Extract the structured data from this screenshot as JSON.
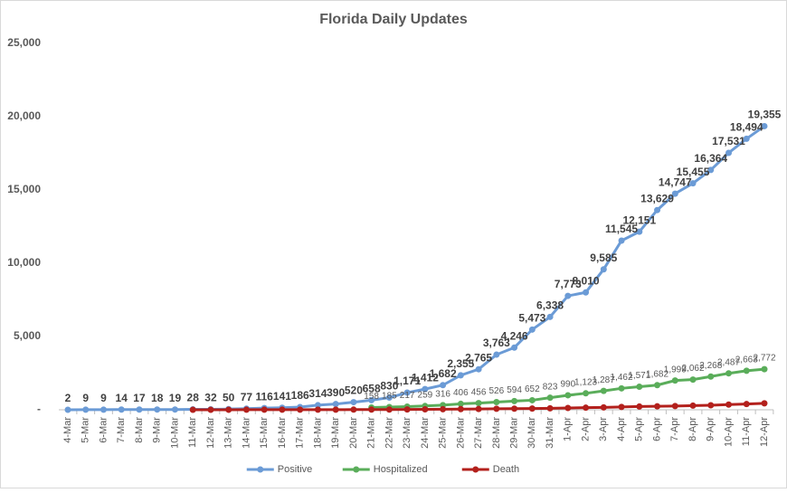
{
  "chart_data": {
    "type": "line",
    "title": "Florida Daily Updates",
    "categories": [
      "4-Mar",
      "5-Mar",
      "6-Mar",
      "7-Mar",
      "8-Mar",
      "9-Mar",
      "10-Mar",
      "11-Mar",
      "12-Mar",
      "13-Mar",
      "14-Mar",
      "15-Mar",
      "16-Mar",
      "17-Mar",
      "18-Mar",
      "19-Mar",
      "20-Mar",
      "21-Mar",
      "22-Mar",
      "23-Mar",
      "24-Mar",
      "25-Mar",
      "26-Mar",
      "27-Mar",
      "28-Mar",
      "29-Mar",
      "30-Mar",
      "31-Mar",
      "1-Apr",
      "2-Apr",
      "3-Apr",
      "4-Apr",
      "5-Apr",
      "6-Apr",
      "7-Apr",
      "8-Apr",
      "9-Apr",
      "10-Apr",
      "11-Apr",
      "12-Apr"
    ],
    "series": [
      {
        "name": "Positive",
        "color": "#6b9bd6",
        "values": [
          2,
          9,
          9,
          14,
          17,
          18,
          19,
          28,
          32,
          50,
          77,
          116,
          141,
          186,
          314,
          390,
          520,
          658,
          830,
          1171,
          1412,
          1682,
          2355,
          2765,
          3763,
          4246,
          5473,
          6338,
          7773,
          8010,
          9585,
          11545,
          12151,
          13629,
          14747,
          15455,
          16364,
          17531,
          18494,
          19355
        ],
        "value_labels": [
          "2",
          "9",
          "9",
          "14",
          "17",
          "18",
          "19",
          "28",
          "32",
          "50",
          "77",
          "116",
          "141",
          "186",
          "314",
          "390",
          "520",
          "658",
          "830",
          "1,171",
          "1,412",
          "1,682",
          "2,355",
          "2,765",
          "3,763",
          "4,246",
          "5,473",
          "6,338",
          "7,773",
          "8,010",
          "9,585",
          "11,545",
          "12,151",
          "13,629",
          "14,747",
          "15,455",
          "16,364",
          "17,531",
          "18,494",
          "19,355"
        ]
      },
      {
        "name": "Hospitalized",
        "color": "#5aad5a",
        "values": [
          null,
          null,
          null,
          null,
          null,
          null,
          null,
          null,
          null,
          null,
          null,
          null,
          null,
          null,
          null,
          null,
          null,
          158,
          185,
          217,
          259,
          316,
          406,
          456,
          526,
          594,
          652,
          823,
          990,
          1123,
          1287,
          1462,
          1571,
          1682,
          1999,
          2062,
          2268,
          2487,
          2663,
          2772
        ],
        "value_labels": [
          null,
          null,
          null,
          null,
          null,
          null,
          null,
          null,
          null,
          null,
          null,
          null,
          null,
          null,
          null,
          null,
          null,
          "158",
          "185",
          "217",
          "259",
          "316",
          "406",
          "456",
          "526",
          "594",
          "652",
          "823",
          "990",
          "1,123",
          "1,287",
          "1,462",
          "1,571",
          "1,682",
          "1,999",
          "2,062",
          "2,268",
          "2,487",
          "2,663",
          "2,772"
        ]
      },
      {
        "name": "Death",
        "color": "#b3201c",
        "values": [
          null,
          null,
          null,
          null,
          null,
          null,
          null,
          2,
          2,
          3,
          5,
          6,
          7,
          7,
          9,
          10,
          12,
          13,
          17,
          22,
          28,
          35,
          46,
          53,
          68,
          77,
          87,
          100,
          123,
          144,
          162,
          195,
          221,
          236,
          254,
          283,
          309,
          354,
          390,
          438
        ]
      }
    ],
    "ylim": [
      0,
      25000
    ],
    "yticks": [
      {
        "value": 0,
        "label": "-"
      },
      {
        "value": 5000,
        "label": "5,000"
      },
      {
        "value": 10000,
        "label": "10,000"
      },
      {
        "value": 15000,
        "label": "15,000"
      },
      {
        "value": 20000,
        "label": "20,000"
      },
      {
        "value": 25000,
        "label": "25,000"
      }
    ],
    "legend": "bottom"
  }
}
